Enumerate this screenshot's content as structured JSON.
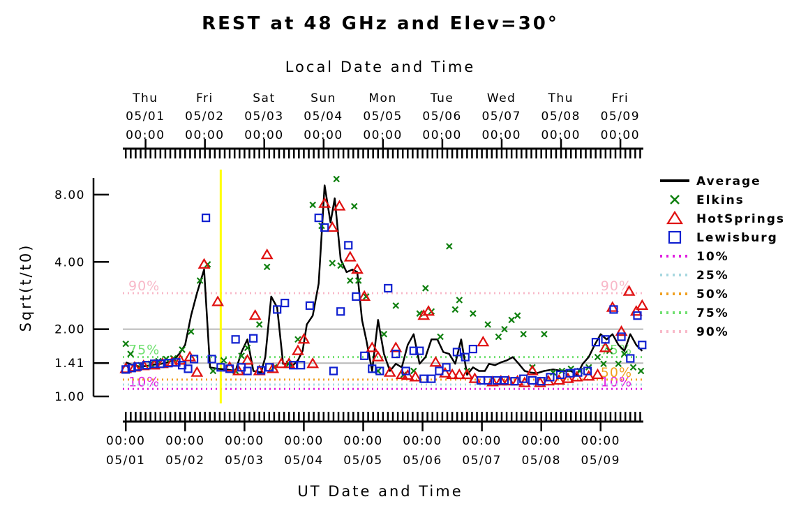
{
  "chart_data": {
    "type": "line",
    "title": "REST at 48 GHz and Elev=30°",
    "top_axis_title": "Local Date and Time",
    "xlabel": "UT Date and Time",
    "ylabel": "Sqrt(t/t0)",
    "y_scale": "log",
    "ylim": [
      1.0,
      9.5
    ],
    "xlim": [
      -0.05,
      8.72
    ],
    "yticks": [
      {
        "value": 1.0,
        "label": "1.00"
      },
      {
        "value": 1.41,
        "label": "1.41"
      },
      {
        "value": 2.0,
        "label": "2.00"
      },
      {
        "value": 4.0,
        "label": "4.00"
      },
      {
        "value": 8.0,
        "label": "8.00"
      }
    ],
    "bottom_ticks": [
      {
        "day": 0,
        "time": "00:00",
        "date": "05/01"
      },
      {
        "day": 1,
        "time": "00:00",
        "date": "05/02"
      },
      {
        "day": 2,
        "time": "00:00",
        "date": "05/03"
      },
      {
        "day": 3,
        "time": "00:00",
        "date": "05/04"
      },
      {
        "day": 4,
        "time": "00:00",
        "date": "05/05"
      },
      {
        "day": 5,
        "time": "00:00",
        "date": "05/06"
      },
      {
        "day": 6,
        "time": "00:00",
        "date": "05/07"
      },
      {
        "day": 7,
        "time": "00:00",
        "date": "05/08"
      },
      {
        "day": 8,
        "time": "00:00",
        "date": "05/09"
      }
    ],
    "top_ticks": [
      {
        "day": 0.33,
        "weekday": "Thu",
        "date": "05/01",
        "time": "00:00"
      },
      {
        "day": 1.33,
        "weekday": "Fri",
        "date": "05/02",
        "time": "00:00"
      },
      {
        "day": 2.33,
        "weekday": "Sat",
        "date": "05/03",
        "time": "00:00"
      },
      {
        "day": 3.33,
        "weekday": "Sun",
        "date": "05/04",
        "time": "00:00"
      },
      {
        "day": 4.33,
        "weekday": "Mon",
        "date": "05/05",
        "time": "00:00"
      },
      {
        "day": 5.33,
        "weekday": "Tue",
        "date": "05/06",
        "time": "00:00"
      },
      {
        "day": 6.33,
        "weekday": "Wed",
        "date": "05/07",
        "time": "00:00"
      },
      {
        "day": 7.33,
        "weekday": "Thu",
        "date": "05/08",
        "time": "00:00"
      },
      {
        "day": 8.33,
        "weekday": "Fri",
        "date": "05/09",
        "time": "00:00"
      }
    ],
    "gridlines_y": [
      1.41,
      2.0
    ],
    "percentiles": [
      {
        "name": "10%",
        "value": 1.08,
        "color": "#e020e0",
        "label_left": "10%",
        "label_right": "10%"
      },
      {
        "name": "25%",
        "value": 1.13,
        "color": "#a8d8e0",
        "label_left": "",
        "label_right": ""
      },
      {
        "name": "50%",
        "value": 1.19,
        "color": "#f0a020",
        "label_left": "",
        "label_right": "50%"
      },
      {
        "name": "75%",
        "value": 1.5,
        "color": "#70e070",
        "label_left": "75%",
        "label_right": "75%"
      },
      {
        "name": "90%",
        "value": 2.9,
        "color": "#f8b8c8",
        "label_left": "90%",
        "label_right": "90%"
      }
    ],
    "marker_line": {
      "day": 1.6,
      "color": "#ffff00"
    },
    "legend_position": "right",
    "series": [
      {
        "name": "Average",
        "kind": "line",
        "color": "#000000",
        "x": [
          0.0,
          0.12,
          0.25,
          0.35,
          0.5,
          0.6,
          0.7,
          0.8,
          0.9,
          1.0,
          1.1,
          1.2,
          1.32,
          1.42,
          1.55,
          1.7,
          1.85,
          1.95,
          2.05,
          2.15,
          2.28,
          2.35,
          2.45,
          2.55,
          2.65,
          2.75,
          2.82,
          2.9,
          2.98,
          3.05,
          3.15,
          3.25,
          3.35,
          3.45,
          3.52,
          3.62,
          3.72,
          3.82,
          3.9,
          3.98,
          4.05,
          4.15,
          4.25,
          4.35,
          4.45,
          4.55,
          4.65,
          4.75,
          4.85,
          4.95,
          5.05,
          5.15,
          5.25,
          5.35,
          5.45,
          5.55,
          5.65,
          5.75,
          5.85,
          5.95,
          6.05,
          6.12,
          6.22,
          6.32,
          6.42,
          6.52,
          6.62,
          6.72,
          6.82,
          6.92,
          7.05,
          7.2,
          7.35,
          7.5,
          7.6,
          7.7,
          7.8,
          7.9,
          8.0,
          8.1,
          8.2,
          8.3,
          8.4,
          8.5,
          8.6,
          8.7
        ],
        "y": [
          1.42,
          1.38,
          1.36,
          1.37,
          1.39,
          1.4,
          1.42,
          1.45,
          1.55,
          1.7,
          2.3,
          2.9,
          3.7,
          1.35,
          1.33,
          1.32,
          1.3,
          1.58,
          1.8,
          1.3,
          1.28,
          1.5,
          2.8,
          2.5,
          1.4,
          1.4,
          1.38,
          1.45,
          1.6,
          2.1,
          2.3,
          3.2,
          8.8,
          6.0,
          7.7,
          4.1,
          3.6,
          3.7,
          3.6,
          2.2,
          1.8,
          1.3,
          2.2,
          1.55,
          1.3,
          1.4,
          1.35,
          1.7,
          1.9,
          1.4,
          1.5,
          1.8,
          1.8,
          1.58,
          1.55,
          1.4,
          1.8,
          1.25,
          1.35,
          1.3,
          1.3,
          1.4,
          1.38,
          1.42,
          1.45,
          1.5,
          1.4,
          1.3,
          1.28,
          1.27,
          1.3,
          1.32,
          1.3,
          1.3,
          1.25,
          1.4,
          1.5,
          1.7,
          1.9,
          1.8,
          1.9,
          1.7,
          1.6,
          1.9,
          1.7,
          1.6
        ]
      },
      {
        "name": "Elkins",
        "kind": "x",
        "color": "#108010",
        "x": [
          0.0,
          0.08,
          0.25,
          0.42,
          0.55,
          0.68,
          0.8,
          0.95,
          1.1,
          1.25,
          1.38,
          1.47,
          1.65,
          1.85,
          1.95,
          2.05,
          2.25,
          2.38,
          2.5,
          2.75,
          2.9,
          3.15,
          3.3,
          3.48,
          3.55,
          3.62,
          3.78,
          3.85,
          3.92,
          4.05,
          4.25,
          4.35,
          4.55,
          4.68,
          4.85,
          4.95,
          5.05,
          5.15,
          5.3,
          5.45,
          5.55,
          5.62,
          5.75,
          5.85,
          6.1,
          6.28,
          6.38,
          6.5,
          6.6,
          6.7,
          6.85,
          7.05,
          7.2,
          7.35,
          7.5,
          7.65,
          7.8,
          7.95,
          8.05,
          8.15,
          8.3,
          8.4,
          8.55,
          8.68
        ],
        "y": [
          1.72,
          1.55,
          1.38,
          1.4,
          1.44,
          1.47,
          1.48,
          1.62,
          1.95,
          3.3,
          3.9,
          1.3,
          1.45,
          1.3,
          1.52,
          1.65,
          2.1,
          3.8,
          1.35,
          1.4,
          1.8,
          7.2,
          5.8,
          3.95,
          9.4,
          3.85,
          3.3,
          7.1,
          3.3,
          2.8,
          1.3,
          1.9,
          2.55,
          1.25,
          1.3,
          2.35,
          3.05,
          2.4,
          1.85,
          4.7,
          2.45,
          2.7,
          1.3,
          2.35,
          2.1,
          1.85,
          2.0,
          2.2,
          2.3,
          1.9,
          1.35,
          1.9,
          1.28,
          1.3,
          1.33,
          1.3,
          1.35,
          1.5,
          1.4,
          1.6,
          1.4,
          1.55,
          1.35,
          1.3
        ]
      },
      {
        "name": "HotSprings",
        "kind": "triangle",
        "color": "#e01010",
        "x": [
          0.0,
          0.15,
          0.3,
          0.48,
          0.62,
          0.78,
          0.92,
          1.08,
          1.2,
          1.32,
          1.55,
          1.75,
          1.9,
          2.05,
          2.18,
          2.25,
          2.38,
          2.48,
          2.62,
          2.75,
          2.9,
          3.0,
          3.15,
          3.35,
          3.48,
          3.6,
          3.78,
          3.9,
          4.02,
          4.15,
          4.25,
          4.45,
          4.55,
          4.65,
          4.75,
          4.88,
          5.02,
          5.1,
          5.22,
          5.38,
          5.5,
          5.62,
          5.75,
          5.88,
          6.02,
          6.18,
          6.32,
          6.45,
          6.6,
          6.72,
          6.85,
          6.98,
          7.12,
          7.3,
          7.45,
          7.6,
          7.8,
          7.95,
          8.08,
          8.2,
          8.35,
          8.48,
          8.6,
          8.7
        ],
        "y": [
          1.33,
          1.35,
          1.37,
          1.38,
          1.4,
          1.42,
          1.45,
          1.5,
          1.28,
          3.9,
          2.65,
          1.35,
          1.3,
          1.45,
          2.3,
          1.3,
          4.3,
          1.33,
          1.4,
          1.4,
          1.6,
          1.8,
          1.4,
          7.3,
          5.7,
          7.1,
          4.2,
          3.7,
          2.8,
          1.65,
          1.5,
          1.28,
          1.65,
          1.25,
          1.24,
          1.22,
          2.3,
          2.4,
          1.42,
          1.27,
          1.25,
          1.25,
          1.25,
          1.2,
          1.75,
          1.16,
          1.17,
          1.17,
          1.17,
          1.15,
          1.3,
          1.15,
          1.17,
          1.18,
          1.2,
          1.22,
          1.23,
          1.25,
          1.65,
          2.5,
          1.95,
          2.95,
          2.4,
          2.55
        ]
      },
      {
        "name": "Lewisburg",
        "kind": "square",
        "color": "#1020d0",
        "x": [
          0.0,
          0.1,
          0.2,
          0.35,
          0.48,
          0.58,
          0.72,
          0.85,
          0.95,
          1.05,
          1.15,
          1.35,
          1.45,
          1.6,
          1.75,
          1.85,
          1.95,
          2.05,
          2.15,
          2.28,
          2.42,
          2.55,
          2.68,
          2.82,
          2.95,
          3.1,
          3.25,
          3.35,
          3.5,
          3.62,
          3.75,
          3.88,
          4.02,
          4.15,
          4.28,
          4.42,
          4.55,
          4.72,
          4.85,
          4.95,
          5.02,
          5.15,
          5.28,
          5.4,
          5.58,
          5.72,
          5.85,
          5.98,
          6.1,
          6.25,
          6.38,
          6.55,
          6.7,
          6.85,
          7.0,
          7.15,
          7.32,
          7.48,
          7.62,
          7.78,
          7.92,
          8.08,
          8.22,
          8.35,
          8.5,
          8.62,
          8.7
        ],
        "y": [
          1.32,
          1.34,
          1.36,
          1.38,
          1.4,
          1.4,
          1.41,
          1.42,
          1.38,
          1.33,
          1.47,
          6.3,
          1.47,
          1.35,
          1.33,
          1.8,
          1.35,
          1.3,
          1.82,
          1.31,
          1.35,
          2.45,
          2.62,
          1.38,
          1.38,
          2.55,
          6.3,
          5.7,
          1.3,
          2.4,
          4.75,
          2.8,
          1.52,
          1.33,
          1.3,
          3.05,
          1.55,
          1.3,
          1.6,
          1.6,
          1.2,
          1.2,
          1.3,
          1.35,
          1.58,
          1.5,
          1.63,
          1.18,
          1.18,
          1.18,
          1.18,
          1.17,
          1.2,
          1.18,
          1.17,
          1.22,
          1.25,
          1.27,
          1.28,
          1.3,
          1.75,
          1.8,
          2.45,
          1.85,
          1.48,
          2.3,
          1.7
        ]
      }
    ],
    "legend_percentiles": [
      {
        "name": "10%",
        "color": "#e020e0"
      },
      {
        "name": "25%",
        "color": "#a8d8e0"
      },
      {
        "name": "50%",
        "color": "#f0a020"
      },
      {
        "name": "75%",
        "color": "#70e070"
      },
      {
        "name": "90%",
        "color": "#f8b8c8"
      }
    ]
  }
}
